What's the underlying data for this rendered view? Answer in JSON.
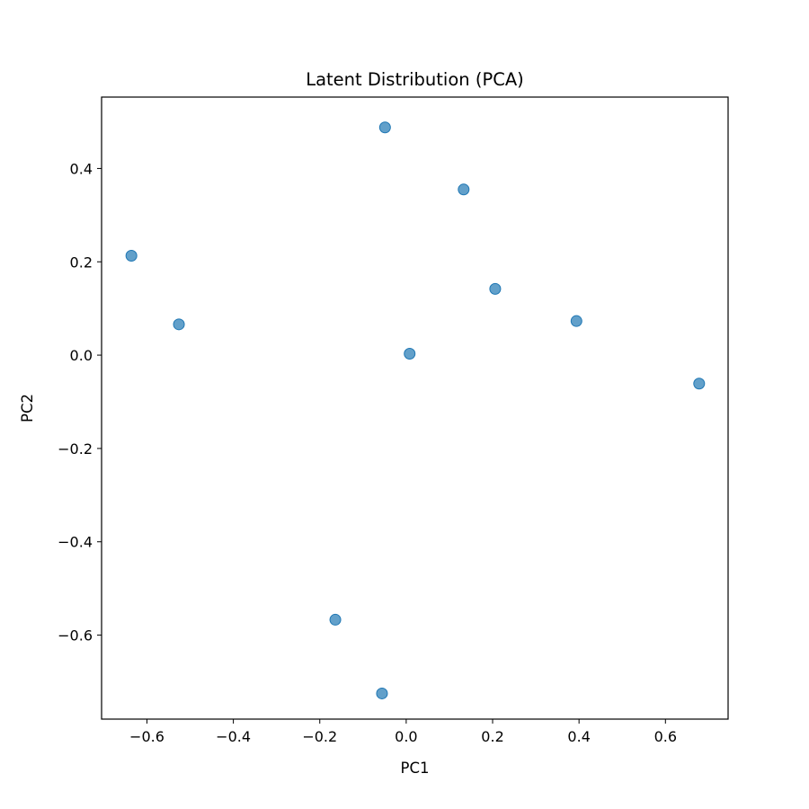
{
  "chart_data": {
    "type": "scatter",
    "title": "Latent Distribution (PCA)",
    "xlabel": "PC1",
    "ylabel": "PC2",
    "xlim": [
      -0.705,
      0.745
    ],
    "ylim": [
      -0.78,
      0.553
    ],
    "xticks": [
      -0.6,
      -0.4,
      -0.2,
      0.0,
      0.2,
      0.4,
      0.6
    ],
    "xtick_labels": [
      "−0.6",
      "−0.4",
      "−0.2",
      "0.0",
      "0.2",
      "0.4",
      "0.6"
    ],
    "yticks": [
      -0.6,
      -0.4,
      -0.2,
      0.0,
      0.2,
      0.4
    ],
    "ytick_labels": [
      "−0.6",
      "−0.4",
      "−0.2",
      "0.0",
      "0.2",
      "0.4"
    ],
    "grid": false,
    "legend": "none",
    "point_color": "#1f77b4",
    "point_alpha": 0.7,
    "points": [
      {
        "x": -0.636,
        "y": 0.213
      },
      {
        "x": -0.526,
        "y": 0.066
      },
      {
        "x": -0.049,
        "y": 0.488
      },
      {
        "x": 0.133,
        "y": 0.355
      },
      {
        "x": 0.206,
        "y": 0.142
      },
      {
        "x": 0.394,
        "y": 0.073
      },
      {
        "x": 0.008,
        "y": 0.003
      },
      {
        "x": 0.678,
        "y": -0.061
      },
      {
        "x": -0.164,
        "y": -0.567
      },
      {
        "x": -0.056,
        "y": -0.725
      }
    ]
  }
}
